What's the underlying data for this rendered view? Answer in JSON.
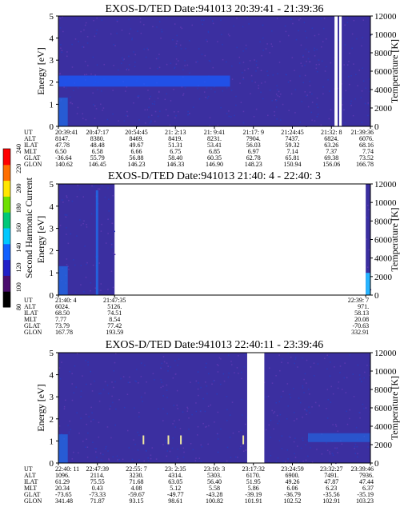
{
  "chart_data": {
    "type": "heatmap",
    "colorbar": {
      "label": "Second Harmonic Current",
      "ticks": [
        "80",
        "100",
        "120",
        "140",
        "160",
        "180",
        "200",
        "220",
        "240"
      ],
      "colors": [
        "#000000",
        "#4b0d6e",
        "#2020c8",
        "#1060ff",
        "#00c8ff",
        "#00c878",
        "#6ee000",
        "#ffe600",
        "#ff6e00",
        "#ff0000"
      ]
    },
    "row_labels": [
      "UT",
      "ALT",
      "ILAT",
      "MLT",
      "GLAT",
      "GLON"
    ],
    "background_color": "#3b2fa0",
    "panels": [
      {
        "title": "EXOS-D/TED  Date:941013  20:39:41 - 21:39:36",
        "ylabel": "Energy [eV]",
        "ylabel_right": "Temperature [K]",
        "yticks": [
          "0",
          "1",
          "2",
          "3",
          "4",
          "5"
        ],
        "ylim": [
          0,
          5
        ],
        "yticks_right": [
          "0",
          "2000",
          "4000",
          "6000",
          "8000",
          "10000",
          "12000"
        ],
        "ylim_right": [
          0,
          12000
        ],
        "gaps": [
          [
            0.885,
            0.895
          ],
          [
            0.9,
            0.908
          ]
        ],
        "band": {
          "energy": [
            1.8,
            2.3
          ],
          "x_range": [
            0,
            0.55
          ],
          "color": "#1a5cff"
        },
        "columns": [
          [
            "20:39:41",
            "8147.",
            "47.78",
            "6.50",
            "-36.64",
            "140.62"
          ],
          [
            "20:47:17",
            "8380.",
            "48.48",
            "6.58",
            "55.79",
            "146.45"
          ],
          [
            "20:54:45",
            "8469.",
            "49.67",
            "6.66",
            "56.88",
            "146.23"
          ],
          [
            "21: 2:13",
            "8419.",
            "51.31",
            "6.75",
            "58.40",
            "146.33"
          ],
          [
            "21: 9:41",
            "8231.",
            "53.41",
            "6.85",
            "60.35",
            "146.90"
          ],
          [
            "21:17: 9",
            "7904.",
            "56.03",
            "6.97",
            "62.78",
            "148.23"
          ],
          [
            "21:24:45",
            "7437.",
            "59.32",
            "7.14",
            "65.81",
            "150.94"
          ],
          [
            "21:32: 8",
            "6824.",
            "63.26",
            "7.37",
            "69.38",
            "156.06"
          ],
          [
            "21:39:36",
            "6076.",
            "68.16",
            "7.74",
            "73.52",
            "166.78"
          ]
        ]
      },
      {
        "title": "EXOS-D/TED   Date:941013  21:40: 4 - 22:40: 3",
        "ylabel": "Energy [eV]",
        "ylabel_right": "Temperature [K]",
        "yticks": [
          "0",
          "1",
          "2",
          "3",
          "4",
          "5"
        ],
        "ylim": [
          0,
          5
        ],
        "yticks_right": [
          "0",
          "2000",
          "4000",
          "6000",
          "8000",
          "10000",
          "12000"
        ],
        "ylim_right": [
          0,
          12000
        ],
        "data_ranges": [
          [
            0,
            0.18
          ],
          [
            0.985,
            1.0
          ]
        ],
        "columns": [
          [
            "21:40: 4",
            "6024.",
            "68.50",
            "7.77",
            "73.79",
            "167.78"
          ],
          [
            "21:47:35",
            "5126.",
            "74.51",
            "8.54",
            "77.42",
            "193.59"
          ],
          [
            "22:39: 7",
            "971.",
            "58.13",
            "20.08",
            "-70.63",
            "332.91"
          ]
        ],
        "column_positions": [
          0,
          0.18,
          0.985
        ]
      },
      {
        "title": "EXOS-D/TED  Date:941013  22:40:11 - 23:39:46",
        "ylabel": "Energy [eV]",
        "ylabel_right": "Temperature [K]",
        "yticks": [
          "0",
          "1",
          "2",
          "3",
          "4",
          "5"
        ],
        "ylim": [
          0,
          5
        ],
        "yticks_right": [
          "0",
          "2000",
          "4000",
          "6000",
          "8000",
          "10000",
          "12000"
        ],
        "ylim_right": [
          0,
          12000
        ],
        "gaps": [
          [
            0.605,
            0.66
          ]
        ],
        "columns": [
          [
            "22:40: 11",
            "1096.",
            "61.29",
            "20.34",
            "-73.65",
            "341.48"
          ],
          [
            "22:47:39",
            "2114.",
            "75.55",
            "0.43",
            "-73.33",
            "71.87"
          ],
          [
            "22:55: 7",
            "3230.",
            "71.68",
            "4.08",
            "-59.67",
            "93.15"
          ],
          [
            "23: 2:35",
            "4314.",
            "63.05",
            "5.12",
            "-49.77",
            "98.61"
          ],
          [
            "23:10: 3",
            "5303.",
            "56.40",
            "5.58",
            "-43.28",
            "100.82"
          ],
          [
            "23:17:32",
            "6170.",
            "51.95",
            "5.86",
            "-39.19",
            "101.91"
          ],
          [
            "23:24:59",
            "6900.",
            "49.26",
            "6.06",
            "-36.79",
            "102.52"
          ],
          [
            "23:32:27",
            "7491.",
            "47.87",
            "6.23",
            "-35.56",
            "102.91"
          ],
          [
            "23:39:46",
            "7936.",
            "47.44",
            "6.37",
            "-35.19",
            "103.23"
          ]
        ]
      }
    ]
  }
}
